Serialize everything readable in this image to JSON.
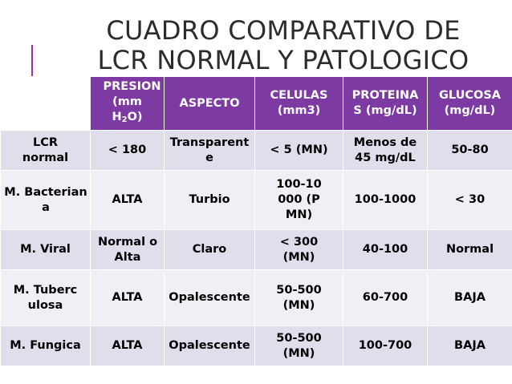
{
  "title": {
    "line1": "CUADRO COMPARATIVO DE",
    "line2": "LCR NORMAL Y PATOLOGICO"
  },
  "table": {
    "headers": {
      "presion_prefix": "PRESION (mm H",
      "presion_sub": "2",
      "presion_suffix": "O)",
      "aspecto": "ASPECTO",
      "celulas": "CELULAS (mm3)",
      "proteinas": "PROTEINAS (mg/dL)",
      "glucosa": "GLUCOSA (mg/dL)"
    },
    "rows": [
      {
        "label": "LCR normal",
        "presion": "< 180",
        "aspecto": "Transparente",
        "celulas": "< 5 (MN)",
        "proteinas": "Menos de 45 mg/dL",
        "glucosa": "50-80"
      },
      {
        "label": "M. Bacteriana",
        "presion": "ALTA",
        "aspecto": "Turbio",
        "celulas": "100-10000 (PMN)",
        "proteinas": "100-1000",
        "glucosa": "< 30"
      },
      {
        "label": "M. Viral",
        "presion": "Normal o Alta",
        "aspecto": "Claro",
        "celulas": "< 300 (MN)",
        "proteinas": "40-100",
        "glucosa": "Normal"
      },
      {
        "label": "M. Tuberculosa",
        "presion": "ALTA",
        "aspecto": "Opalescente",
        "celulas": "50-500 (MN)",
        "proteinas": "60-700",
        "glucosa": "BAJA"
      },
      {
        "label": "M. Fungica",
        "presion": "ALTA",
        "aspecto": "Opalescente",
        "celulas": "50-500 (MN)",
        "proteinas": "100-700",
        "glucosa": "BAJA"
      }
    ]
  }
}
